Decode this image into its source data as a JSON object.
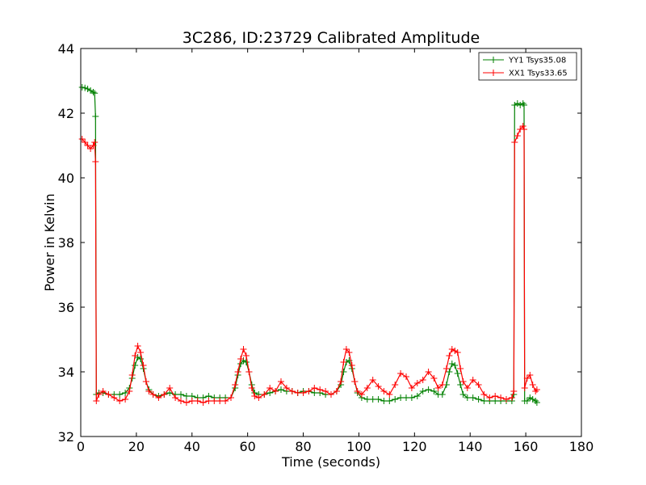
{
  "chart_data": {
    "type": "line",
    "title": "3C286, ID:23729 Calibrated Amplitude",
    "xlabel": "Time (seconds)",
    "ylabel": "Power in Kelvin",
    "xlim": [
      0,
      180
    ],
    "ylim": [
      32,
      44
    ],
    "x_ticks": [
      "0",
      "20",
      "40",
      "60",
      "80",
      "100",
      "120",
      "140",
      "160",
      "180"
    ],
    "y_ticks": [
      "32",
      "34",
      "36",
      "38",
      "40",
      "42",
      "44"
    ],
    "grid": false,
    "legend_position": "top-right",
    "marker": "plus",
    "series": [
      {
        "name": "YY1 Tsys35.08",
        "color": "#008000",
        "points": [
          [
            0.5,
            42.8
          ],
          [
            1.5,
            42.78
          ],
          [
            2.5,
            42.75
          ],
          [
            3.5,
            42.7
          ],
          [
            4.5,
            42.65
          ],
          [
            5.0,
            42.62
          ],
          [
            5.3,
            41.9
          ],
          [
            5.6,
            33.3
          ],
          [
            6.5,
            33.35
          ],
          [
            8,
            33.35
          ],
          [
            10,
            33.3
          ],
          [
            12,
            33.3
          ],
          [
            14,
            33.3
          ],
          [
            16,
            33.35
          ],
          [
            17.5,
            33.5
          ],
          [
            18.5,
            33.8
          ],
          [
            19.5,
            34.2
          ],
          [
            20.5,
            34.45
          ],
          [
            21.5,
            34.4
          ],
          [
            22.5,
            34.1
          ],
          [
            23.5,
            33.7
          ],
          [
            24.5,
            33.45
          ],
          [
            26,
            33.3
          ],
          [
            28,
            33.25
          ],
          [
            30,
            33.3
          ],
          [
            32,
            33.35
          ],
          [
            34,
            33.3
          ],
          [
            36,
            33.3
          ],
          [
            38,
            33.25
          ],
          [
            40,
            33.25
          ],
          [
            42,
            33.2
          ],
          [
            44,
            33.2
          ],
          [
            46,
            33.25
          ],
          [
            48,
            33.2
          ],
          [
            50,
            33.2
          ],
          [
            52,
            33.2
          ],
          [
            54,
            33.2
          ],
          [
            55.5,
            33.5
          ],
          [
            56.5,
            33.9
          ],
          [
            57.5,
            34.25
          ],
          [
            58.5,
            34.35
          ],
          [
            59.5,
            34.3
          ],
          [
            60.5,
            34.0
          ],
          [
            61.5,
            33.6
          ],
          [
            62.5,
            33.35
          ],
          [
            64,
            33.3
          ],
          [
            66,
            33.3
          ],
          [
            68,
            33.35
          ],
          [
            70,
            33.4
          ],
          [
            72,
            33.45
          ],
          [
            74,
            33.4
          ],
          [
            76,
            33.4
          ],
          [
            78,
            33.35
          ],
          [
            80,
            33.4
          ],
          [
            82,
            33.4
          ],
          [
            84,
            33.35
          ],
          [
            86,
            33.35
          ],
          [
            88,
            33.3
          ],
          [
            90,
            33.3
          ],
          [
            92,
            33.4
          ],
          [
            93.5,
            33.6
          ],
          [
            94.5,
            34.0
          ],
          [
            95.5,
            34.3
          ],
          [
            96.5,
            34.35
          ],
          [
            97.5,
            34.1
          ],
          [
            98.5,
            33.7
          ],
          [
            99.5,
            33.35
          ],
          [
            101,
            33.2
          ],
          [
            103,
            33.15
          ],
          [
            105,
            33.15
          ],
          [
            107,
            33.15
          ],
          [
            109,
            33.1
          ],
          [
            111,
            33.1
          ],
          [
            113,
            33.15
          ],
          [
            115,
            33.2
          ],
          [
            117,
            33.2
          ],
          [
            119,
            33.2
          ],
          [
            121,
            33.25
          ],
          [
            123,
            33.4
          ],
          [
            125,
            33.45
          ],
          [
            127,
            33.4
          ],
          [
            128.5,
            33.3
          ],
          [
            130,
            33.3
          ],
          [
            131.5,
            33.6
          ],
          [
            132.5,
            34.0
          ],
          [
            133.5,
            34.25
          ],
          [
            134.5,
            34.2
          ],
          [
            135.5,
            33.95
          ],
          [
            136.5,
            33.6
          ],
          [
            137.5,
            33.3
          ],
          [
            139,
            33.2
          ],
          [
            141,
            33.2
          ],
          [
            143,
            33.15
          ],
          [
            145,
            33.1
          ],
          [
            147,
            33.1
          ],
          [
            149,
            33.1
          ],
          [
            151,
            33.1
          ],
          [
            153,
            33.1
          ],
          [
            155,
            33.1
          ],
          [
            155.7,
            33.3
          ],
          [
            156.0,
            42.25
          ],
          [
            157,
            42.3
          ],
          [
            158,
            42.25
          ],
          [
            159,
            42.3
          ],
          [
            159.4,
            42.25
          ],
          [
            159.6,
            33.1
          ],
          [
            160.5,
            33.1
          ],
          [
            161.5,
            33.2
          ],
          [
            162.5,
            33.15
          ],
          [
            163.5,
            33.1
          ],
          [
            164,
            33.05
          ]
        ]
      },
      {
        "name": "XX1 Tsys33.65",
        "color": "#ff0000",
        "points": [
          [
            0.5,
            41.2
          ],
          [
            1.5,
            41.1
          ],
          [
            2.5,
            41.0
          ],
          [
            3.5,
            40.9
          ],
          [
            4.5,
            41.0
          ],
          [
            5.0,
            41.1
          ],
          [
            5.3,
            40.5
          ],
          [
            5.6,
            33.1
          ],
          [
            6.5,
            33.3
          ],
          [
            8,
            33.4
          ],
          [
            10,
            33.3
          ],
          [
            12,
            33.2
          ],
          [
            14,
            33.1
          ],
          [
            16,
            33.15
          ],
          [
            17.5,
            33.4
          ],
          [
            18.5,
            33.9
          ],
          [
            19.5,
            34.5
          ],
          [
            20.5,
            34.8
          ],
          [
            21.5,
            34.6
          ],
          [
            22.5,
            34.2
          ],
          [
            23.5,
            33.7
          ],
          [
            24.5,
            33.4
          ],
          [
            26,
            33.3
          ],
          [
            28,
            33.2
          ],
          [
            30,
            33.3
          ],
          [
            32,
            33.5
          ],
          [
            34,
            33.2
          ],
          [
            36,
            33.1
          ],
          [
            38,
            33.05
          ],
          [
            40,
            33.1
          ],
          [
            42,
            33.1
          ],
          [
            44,
            33.05
          ],
          [
            46,
            33.1
          ],
          [
            48,
            33.1
          ],
          [
            50,
            33.1
          ],
          [
            52,
            33.1
          ],
          [
            54,
            33.2
          ],
          [
            55.5,
            33.6
          ],
          [
            56.5,
            34.0
          ],
          [
            57.5,
            34.4
          ],
          [
            58.5,
            34.7
          ],
          [
            59.5,
            34.5
          ],
          [
            60.5,
            34.0
          ],
          [
            61.5,
            33.5
          ],
          [
            62.5,
            33.25
          ],
          [
            64,
            33.2
          ],
          [
            66,
            33.3
          ],
          [
            68,
            33.5
          ],
          [
            70,
            33.4
          ],
          [
            72,
            33.7
          ],
          [
            74,
            33.5
          ],
          [
            76,
            33.4
          ],
          [
            78,
            33.35
          ],
          [
            80,
            33.35
          ],
          [
            82,
            33.4
          ],
          [
            84,
            33.5
          ],
          [
            86,
            33.45
          ],
          [
            88,
            33.4
          ],
          [
            90,
            33.3
          ],
          [
            92,
            33.4
          ],
          [
            93.5,
            33.7
          ],
          [
            94.5,
            34.3
          ],
          [
            95.5,
            34.7
          ],
          [
            96.5,
            34.6
          ],
          [
            97.5,
            34.2
          ],
          [
            98.5,
            33.7
          ],
          [
            99.5,
            33.4
          ],
          [
            101,
            33.3
          ],
          [
            103,
            33.5
          ],
          [
            105,
            33.75
          ],
          [
            107,
            33.55
          ],
          [
            109,
            33.4
          ],
          [
            111,
            33.3
          ],
          [
            113,
            33.6
          ],
          [
            115,
            33.95
          ],
          [
            117,
            33.85
          ],
          [
            119,
            33.5
          ],
          [
            121,
            33.65
          ],
          [
            123,
            33.75
          ],
          [
            125,
            34.0
          ],
          [
            127,
            33.8
          ],
          [
            128.5,
            33.5
          ],
          [
            130,
            33.6
          ],
          [
            131.5,
            34.1
          ],
          [
            132.5,
            34.5
          ],
          [
            133.5,
            34.7
          ],
          [
            134.5,
            34.65
          ],
          [
            135.5,
            34.6
          ],
          [
            136.5,
            34.1
          ],
          [
            137.5,
            33.7
          ],
          [
            139,
            33.5
          ],
          [
            141,
            33.75
          ],
          [
            143,
            33.6
          ],
          [
            145,
            33.3
          ],
          [
            147,
            33.2
          ],
          [
            149,
            33.25
          ],
          [
            151,
            33.2
          ],
          [
            153,
            33.15
          ],
          [
            155,
            33.2
          ],
          [
            155.7,
            33.4
          ],
          [
            156.0,
            41.1
          ],
          [
            157,
            41.3
          ],
          [
            158,
            41.5
          ],
          [
            159,
            41.6
          ],
          [
            159.4,
            41.5
          ],
          [
            159.6,
            33.5
          ],
          [
            160.5,
            33.8
          ],
          [
            161.5,
            33.9
          ],
          [
            162.5,
            33.6
          ],
          [
            163.5,
            33.4
          ],
          [
            164,
            33.45
          ]
        ]
      }
    ]
  }
}
